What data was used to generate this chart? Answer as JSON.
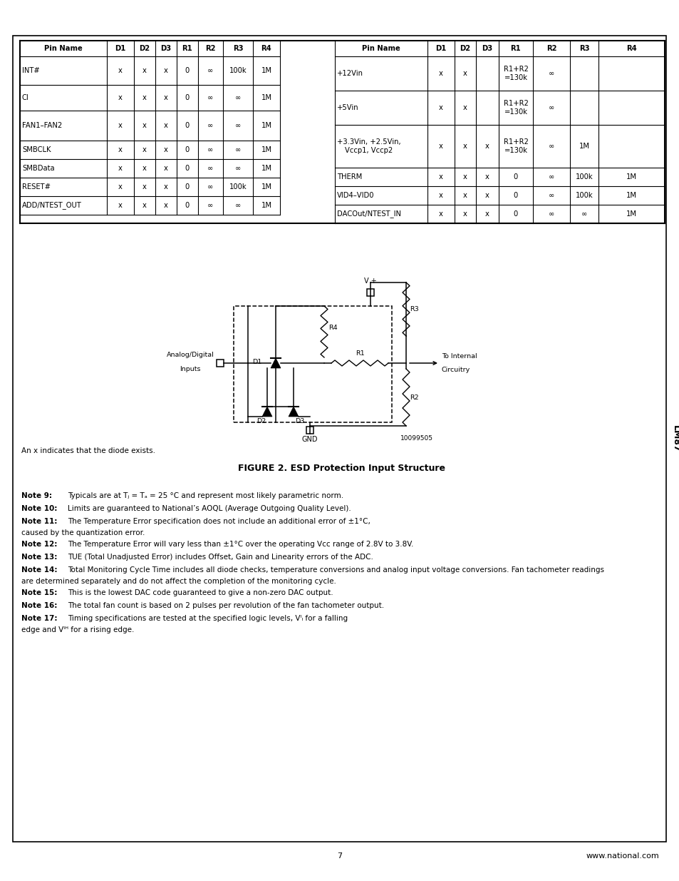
{
  "page_bg": "#ffffff",
  "table": {
    "headers_left": [
      "Pin Name",
      "D1",
      "D2",
      "D3",
      "R1",
      "R2",
      "R3",
      "R4"
    ],
    "rows_left": [
      [
        "INT#",
        "x",
        "x",
        "x",
        "0",
        "∞",
        "100k",
        "1M"
      ],
      [
        "CI",
        "x",
        "x",
        "x",
        "0",
        "∞",
        "∞",
        "1M"
      ],
      [
        "FAN1–FAN2",
        "x",
        "x",
        "x",
        "0",
        "∞",
        "∞",
        "1M"
      ],
      [
        "SMBCLK",
        "x",
        "x",
        "x",
        "0",
        "∞",
        "∞",
        "1M"
      ],
      [
        "SMBData",
        "x",
        "x",
        "x",
        "0",
        "∞",
        "∞",
        "1M"
      ],
      [
        "RESET#",
        "x",
        "x",
        "x",
        "0",
        "∞",
        "100k",
        "1M"
      ],
      [
        "ADD/NTEST_OUT",
        "x",
        "x",
        "x",
        "0",
        "∞",
        "∞",
        "1M"
      ]
    ],
    "headers_right": [
      "Pin Name",
      "D1",
      "D2",
      "D3",
      "R1",
      "R2",
      "R3",
      "R4"
    ],
    "rows_right": [
      [
        "+12Vin",
        "x",
        "x",
        "",
        "R1+R2\n=130k",
        "∞",
        "",
        ""
      ],
      [
        "+5Vin",
        "x",
        "x",
        "",
        "R1+R2\n=130k",
        "∞",
        "",
        ""
      ],
      [
        "+3.3Vin, +2.5Vin,\nVccp1, Vccp2",
        "x",
        "x",
        "x",
        "R1+R2\n=130k",
        "∞",
        "1M",
        ""
      ],
      [
        "THERM",
        "x",
        "x",
        "x",
        "0",
        "∞",
        "100k",
        "1M"
      ],
      [
        "VID4–VID0",
        "x",
        "x",
        "x",
        "0",
        "∞",
        "100k",
        "1M"
      ],
      [
        "DACOut/NTEST_IN",
        "x",
        "x",
        "x",
        "0",
        "∞",
        "∞",
        "1M"
      ]
    ]
  },
  "figure_caption": "FIGURE 2. ESD Protection Input Structure",
  "figure_note": "An x indicates that the diode exists.",
  "notes": [
    [
      "Note 9:",
      "Typicals are at Tⱼ = Tₐ = 25 °C and represent most likely parametric norm."
    ],
    [
      "Note 10:",
      "Limits are guaranteed to National’s AOQL (Average Outgoing Quality Level)."
    ],
    [
      "Note 11:",
      "The Temperature Error specification does not include an additional error of ±1°C, caused by the quantization error."
    ],
    [
      "Note 12:",
      "The Temperature Error will vary less than ±1°C over the operating Vcc range of 2.8V to 3.8V."
    ],
    [
      "Note 13:",
      "TUE (Total Unadjusted Error) includes Offset, Gain and Linearity errors of the ADC."
    ],
    [
      "Note 14:",
      "Total Monitoring Cycle Time includes all diode checks, temperature conversions and analog input voltage conversions. Fan tachometer readings are determined separately and do not affect the completion of the monitoring cycle."
    ],
    [
      "Note 15:",
      "This is the lowest DAC code guaranteed to give a non-zero DAC output."
    ],
    [
      "Note 16:",
      "The total fan count is based on 2 pulses per revolution of the fan tachometer output."
    ],
    [
      "Note 17:",
      "Timing specifications are tested at the specified logic levels, Vᴵₗ for a falling edge and Vᴵᴴ for a rising edge."
    ]
  ],
  "lm87_label": "LM87",
  "page_number": "7",
  "website": "www.national.com",
  "part_number": "10099505"
}
